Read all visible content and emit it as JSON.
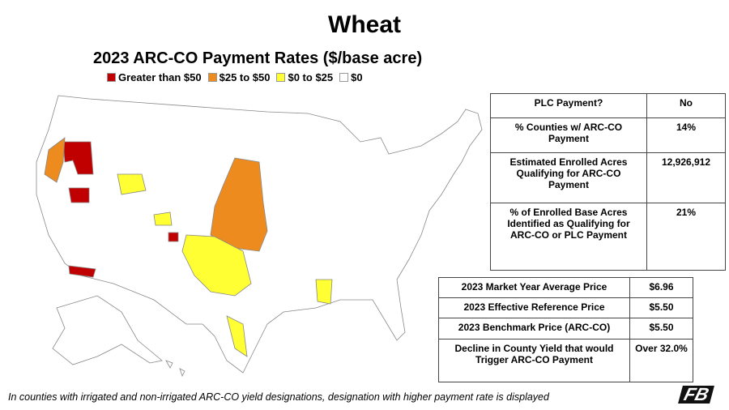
{
  "title": "Wheat",
  "subtitle": "2023 ARC-CO Payment Rates ($/base acre)",
  "legend": [
    {
      "label": "Greater than $50",
      "color": "#c00000"
    },
    {
      "label": "$25 to $50",
      "color": "#ed8b1e"
    },
    {
      "label": "$0 to $25",
      "color": "#ffff33"
    },
    {
      "label": "$0",
      "color": "#ffffff"
    }
  ],
  "table1": {
    "rows": [
      [
        "PLC Payment?",
        "No"
      ],
      [
        "% Counties w/ ARC-CO Payment",
        "14%"
      ],
      [
        "Estimated Enrolled Acres Qualifying for ARC-CO Payment",
        "12,926,912"
      ],
      [
        "% of Enrolled Base Acres Identified as Qualifying for ARC-CO or PLC Payment",
        "21%"
      ]
    ]
  },
  "table2": {
    "rows": [
      [
        "2023 Market Year Average Price",
        "$6.96"
      ],
      [
        "2023 Effective Reference Price",
        "$5.50"
      ],
      [
        "2023 Benchmark Price (ARC-CO)",
        "$5.50"
      ],
      [
        "Decline in County Yield that would Trigger ARC-CO Payment",
        "Over 32.0%"
      ]
    ]
  },
  "footnote": "In counties with irrigated and non-irrigated ARC-CO yield designations, designation with higher payment rate is displayed",
  "logo": "FB"
}
